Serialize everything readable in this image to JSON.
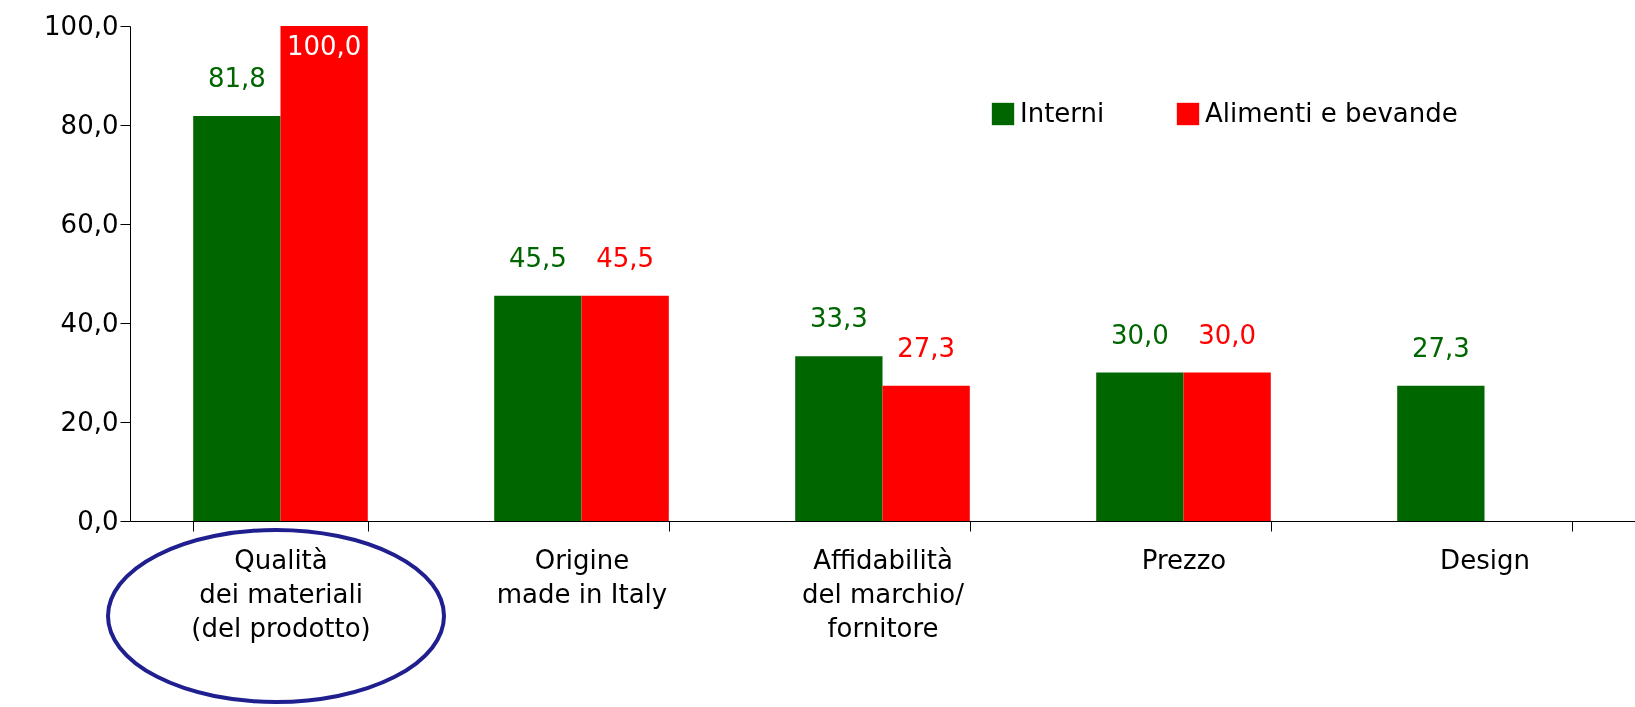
{
  "chart_data": {
    "type": "bar",
    "categories": [
      "Qualità\ndei materiali\n(del prodotto)",
      "Origine\nmade in Italy",
      "Affidabilità\ndel marchio/\nfornitore",
      "Prezzo",
      "Design"
    ],
    "series": [
      {
        "name": "Interni",
        "color": "#006600",
        "values": [
          81.8,
          45.5,
          33.3,
          30.0,
          27.3
        ],
        "value_labels": [
          "81,8",
          "45,5",
          "33,3",
          "30,0",
          "27,3"
        ]
      },
      {
        "name": "Alimenti e bevande",
        "color": "#ff0000",
        "values": [
          100.0,
          45.5,
          27.3,
          30.0,
          null
        ],
        "value_labels": [
          "100,0",
          "45,5",
          "27,3",
          "30,0",
          null
        ]
      }
    ],
    "ylim": [
      0,
      100
    ],
    "yticks": [
      {
        "value": 0,
        "label": "0,0"
      },
      {
        "value": 20,
        "label": "20,0"
      },
      {
        "value": 40,
        "label": "40,0"
      },
      {
        "value": 60,
        "label": "60,0"
      },
      {
        "value": 80,
        "label": "80,0"
      },
      {
        "value": 100,
        "label": "100,0"
      }
    ],
    "grid": false,
    "legend": "top right"
  }
}
